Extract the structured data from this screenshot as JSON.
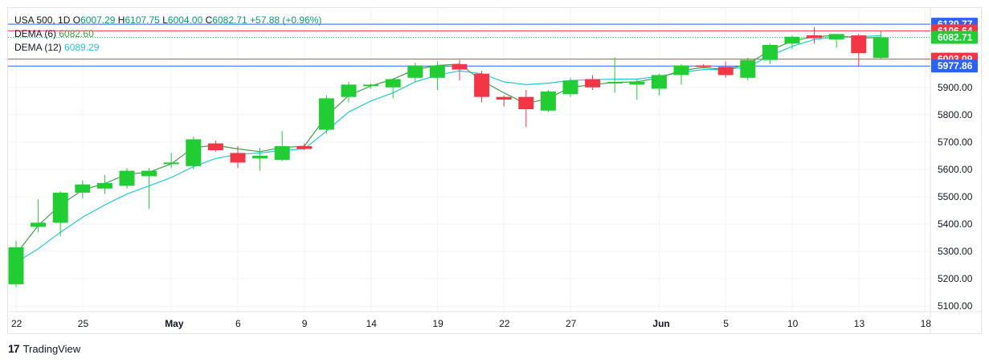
{
  "legend": {
    "symbol": "USA 500, 1D",
    "o_label": "O",
    "o": "6007.29",
    "h_label": "H",
    "h": "6107.75",
    "l_label": "L",
    "l": "6004.00",
    "c_label": "C",
    "c": "6082.71",
    "change": "+57.88 (+0.96%)",
    "dema6_label": "DEMA (6)",
    "dema6_value": "6082.60",
    "dema12_label": "DEMA (12)",
    "dema12_value": "6089.29"
  },
  "colors": {
    "up": "#22cc33",
    "down": "#f23645",
    "dema6": "#43a047",
    "dema12": "#26c6da",
    "blue_line": "#2962ff",
    "red_line": "#f23645",
    "teal_line": "#0a8a8a"
  },
  "footer": {
    "brand": "TradingView",
    "logo": "tradingview-logo-icon"
  },
  "chart_data": {
    "type": "candlestick",
    "y_ticks": [
      5100,
      5200,
      5300,
      5400,
      5500,
      5600,
      5700,
      5800,
      5900
    ],
    "y_tick_labels": [
      "5100.00",
      "5200.00",
      "5300.00",
      "5400.00",
      "5500.00",
      "5600.00",
      "5700.00",
      "5800.00",
      "5900.00"
    ],
    "ylim": [
      5080,
      6190
    ],
    "x_labels": [
      {
        "i": 0,
        "text": "22",
        "bold": false
      },
      {
        "i": 3,
        "text": "25",
        "bold": false
      },
      {
        "i": 7,
        "text": "May",
        "bold": true
      },
      {
        "i": 10,
        "text": "6",
        "bold": false
      },
      {
        "i": 13,
        "text": "9",
        "bold": false
      },
      {
        "i": 16,
        "text": "14",
        "bold": false
      },
      {
        "i": 19,
        "text": "19",
        "bold": false
      },
      {
        "i": 22,
        "text": "22",
        "bold": false
      },
      {
        "i": 25,
        "text": "27",
        "bold": false
      },
      {
        "i": 29,
        "text": "Jun",
        "bold": true
      },
      {
        "i": 32,
        "text": "5",
        "bold": false
      },
      {
        "i": 35,
        "text": "10",
        "bold": false
      },
      {
        "i": 38,
        "text": "13",
        "bold": false
      },
      {
        "i": 41,
        "text": "18",
        "bold": false
      }
    ],
    "candles": [
      {
        "o": 5180,
        "h": 5340,
        "l": 5170,
        "c": 5315
      },
      {
        "o": 5390,
        "h": 5490,
        "l": 5370,
        "c": 5405
      },
      {
        "o": 5405,
        "h": 5520,
        "l": 5355,
        "c": 5515
      },
      {
        "o": 5515,
        "h": 5560,
        "l": 5495,
        "c": 5545
      },
      {
        "o": 5530,
        "h": 5580,
        "l": 5510,
        "c": 5550
      },
      {
        "o": 5540,
        "h": 5605,
        "l": 5530,
        "c": 5595
      },
      {
        "o": 5575,
        "h": 5605,
        "l": 5455,
        "c": 5595
      },
      {
        "o": 5620,
        "h": 5660,
        "l": 5605,
        "c": 5625
      },
      {
        "o": 5612,
        "h": 5720,
        "l": 5600,
        "c": 5710
      },
      {
        "o": 5695,
        "h": 5705,
        "l": 5665,
        "c": 5670
      },
      {
        "o": 5660,
        "h": 5685,
        "l": 5605,
        "c": 5625
      },
      {
        "o": 5640,
        "h": 5680,
        "l": 5595,
        "c": 5650
      },
      {
        "o": 5635,
        "h": 5740,
        "l": 5630,
        "c": 5685
      },
      {
        "o": 5685,
        "h": 5695,
        "l": 5670,
        "c": 5675
      },
      {
        "o": 5745,
        "h": 5870,
        "l": 5730,
        "c": 5860
      },
      {
        "o": 5865,
        "h": 5920,
        "l": 5845,
        "c": 5910
      },
      {
        "o": 5905,
        "h": 5915,
        "l": 5895,
        "c": 5910
      },
      {
        "o": 5900,
        "h": 5930,
        "l": 5860,
        "c": 5930
      },
      {
        "o": 5935,
        "h": 5990,
        "l": 5920,
        "c": 5980
      },
      {
        "o": 5935,
        "h": 5995,
        "l": 5890,
        "c": 5980
      },
      {
        "o": 5985,
        "h": 6000,
        "l": 5925,
        "c": 5965
      },
      {
        "o": 5950,
        "h": 5960,
        "l": 5845,
        "c": 5865
      },
      {
        "o": 5865,
        "h": 5870,
        "l": 5830,
        "c": 5855
      },
      {
        "o": 5865,
        "h": 5890,
        "l": 5755,
        "c": 5820
      },
      {
        "o": 5815,
        "h": 5890,
        "l": 5810,
        "c": 5885
      },
      {
        "o": 5875,
        "h": 5935,
        "l": 5865,
        "c": 5925
      },
      {
        "o": 5930,
        "h": 5945,
        "l": 5890,
        "c": 5900
      },
      {
        "o": 5915,
        "h": 6010,
        "l": 5880,
        "c": 5920
      },
      {
        "o": 5910,
        "h": 5930,
        "l": 5855,
        "c": 5920
      },
      {
        "o": 5895,
        "h": 5950,
        "l": 5870,
        "c": 5945
      },
      {
        "o": 5945,
        "h": 5985,
        "l": 5910,
        "c": 5980
      },
      {
        "o": 5980,
        "h": 5985,
        "l": 5970,
        "c": 5977
      },
      {
        "o": 5975,
        "h": 5995,
        "l": 5935,
        "c": 5945
      },
      {
        "o": 5935,
        "h": 6010,
        "l": 5925,
        "c": 6000
      },
      {
        "o": 6000,
        "h": 6060,
        "l": 5985,
        "c": 6055
      },
      {
        "o": 6060,
        "h": 6090,
        "l": 6040,
        "c": 6085
      },
      {
        "o": 6090,
        "h": 6120,
        "l": 6060,
        "c": 6080
      },
      {
        "o": 6075,
        "h": 6095,
        "l": 6045,
        "c": 6095
      },
      {
        "o": 6090,
        "h": 6095,
        "l": 5975,
        "c": 6025
      },
      {
        "o": 6007.29,
        "h": 6107.75,
        "l": 6004,
        "c": 6082.71
      }
    ],
    "dema6": [
      5290,
      5395,
      5470,
      5525,
      5548,
      5582,
      5590,
      5620,
      5680,
      5688,
      5675,
      5665,
      5680,
      5685,
      5795,
      5870,
      5905,
      5930,
      5965,
      5980,
      5985,
      5925,
      5880,
      5840,
      5860,
      5900,
      5910,
      5918,
      5920,
      5935,
      5962,
      5972,
      5965,
      5985,
      6035,
      6070,
      6085,
      6090,
      6080,
      6082.6
    ],
    "dema12": [
      5260,
      5310,
      5370,
      5425,
      5470,
      5510,
      5540,
      5570,
      5610,
      5640,
      5655,
      5660,
      5670,
      5675,
      5740,
      5810,
      5850,
      5880,
      5920,
      5945,
      5960,
      5950,
      5920,
      5910,
      5915,
      5925,
      5928,
      5930,
      5930,
      5940,
      5955,
      5965,
      5965,
      5975,
      6015,
      6050,
      6075,
      6085,
      6085,
      6089.29
    ],
    "h_lines": [
      {
        "value": 6130.77,
        "label": "6130.77",
        "color": "#2962ff"
      },
      {
        "value": 6106.64,
        "label": "6106.64",
        "color": "#f23645"
      },
      {
        "value": 6082.71,
        "label": "6082.71",
        "color": "#22cc33",
        "dotted": true
      },
      {
        "value": 6003.09,
        "label": "6003.09",
        "color": "#f23645"
      },
      {
        "value": 5977.86,
        "label": "5977.86",
        "color": "#2962ff"
      }
    ]
  }
}
